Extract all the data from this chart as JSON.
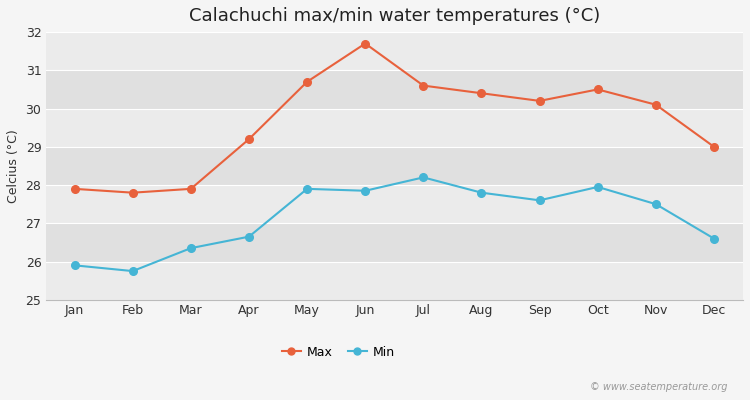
{
  "title": "Calachuchi max/min water temperatures (°C)",
  "ylabel": "Celcius (°C)",
  "months": [
    "Jan",
    "Feb",
    "Mar",
    "Apr",
    "May",
    "Jun",
    "Jul",
    "Aug",
    "Sep",
    "Oct",
    "Nov",
    "Dec"
  ],
  "max_temps": [
    27.9,
    27.8,
    27.9,
    29.2,
    30.7,
    31.7,
    30.6,
    30.4,
    30.2,
    30.5,
    30.1,
    29.0
  ],
  "min_temps": [
    25.9,
    25.75,
    26.35,
    26.65,
    27.9,
    27.85,
    28.2,
    27.8,
    27.6,
    27.95,
    27.5,
    26.6
  ],
  "max_color": "#e8613c",
  "min_color": "#45b5d5",
  "fig_bg_color": "#f5f5f5",
  "band_colors": [
    "#ebebeb",
    "#e0e0e0"
  ],
  "grid_line_color": "#ffffff",
  "ylim": [
    25,
    32
  ],
  "yticks": [
    25,
    26,
    27,
    28,
    29,
    30,
    31,
    32
  ],
  "legend_labels": [
    "Max",
    "Min"
  ],
  "watermark": "© www.seatemperature.org",
  "title_fontsize": 13,
  "label_fontsize": 9,
  "tick_fontsize": 9,
  "legend_fontsize": 9
}
